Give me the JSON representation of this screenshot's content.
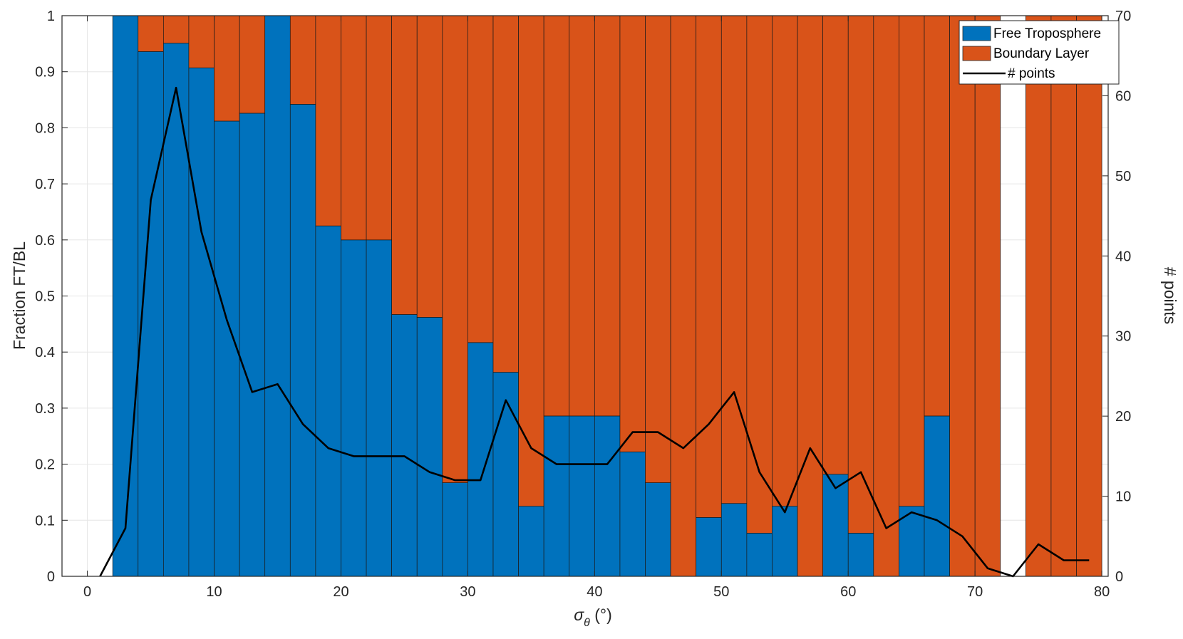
{
  "chart_data": {
    "type": "bar",
    "stacked": true,
    "bin_width": 2,
    "bin_starts": [
      0,
      2,
      4,
      6,
      8,
      10,
      12,
      14,
      16,
      18,
      20,
      22,
      24,
      26,
      28,
      30,
      32,
      34,
      36,
      38,
      40,
      42,
      44,
      46,
      48,
      50,
      52,
      54,
      56,
      58,
      60,
      62,
      64,
      66,
      68,
      70,
      72,
      74,
      76,
      78
    ],
    "series": [
      {
        "name": "Free Troposphere",
        "color": "#0072BD",
        "values": [
          null,
          1.0,
          0.936,
          0.951,
          0.907,
          0.812,
          0.826,
          1.0,
          0.842,
          0.625,
          0.6,
          0.6,
          0.467,
          0.462,
          0.167,
          0.417,
          0.364,
          0.125,
          0.286,
          0.286,
          0.286,
          0.222,
          0.167,
          0.0,
          0.105,
          0.13,
          0.077,
          0.125,
          0.0,
          0.182,
          0.077,
          0.0,
          0.125,
          0.286,
          0.0,
          0.0,
          null,
          0.0,
          0.0,
          0.0
        ]
      },
      {
        "name": "Boundary Layer",
        "color": "#D95319",
        "values": [
          null,
          0.0,
          0.064,
          0.049,
          0.093,
          0.188,
          0.174,
          0.0,
          0.158,
          0.375,
          0.4,
          0.4,
          0.533,
          0.538,
          0.833,
          0.583,
          0.636,
          0.875,
          0.714,
          0.714,
          0.714,
          0.778,
          0.833,
          1.0,
          0.895,
          0.87,
          0.923,
          0.875,
          1.0,
          0.818,
          0.923,
          1.0,
          0.875,
          0.714,
          1.0,
          1.0,
          null,
          1.0,
          1.0,
          1.0
        ]
      },
      {
        "name": "# points",
        "type": "line",
        "axis": "right",
        "color": "#000000",
        "x": [
          1,
          3,
          5,
          7,
          9,
          11,
          13,
          15,
          17,
          19,
          21,
          23,
          25,
          27,
          29,
          31,
          33,
          35,
          37,
          39,
          41,
          43,
          45,
          47,
          49,
          51,
          53,
          55,
          57,
          59,
          61,
          63,
          65,
          67,
          69,
          71,
          73,
          75,
          77,
          79
        ],
        "values": [
          0,
          6,
          47,
          61,
          43,
          32,
          23,
          24,
          19,
          16,
          15,
          15,
          15,
          13,
          12,
          12,
          22,
          16,
          14,
          14,
          14,
          18,
          18,
          16,
          19,
          23,
          13,
          8,
          16,
          11,
          13,
          6,
          8,
          7,
          5,
          1,
          0,
          4,
          2,
          2
        ]
      }
    ],
    "xlabel_symbol": "σ",
    "xlabel_subscript": "θ",
    "xlabel_unit": " (°)",
    "ylabel": "Fraction FT/BL",
    "y2label": "# points",
    "xlim": [
      -2,
      80.5
    ],
    "ylim": [
      0,
      1
    ],
    "y2lim": [
      0,
      70
    ],
    "xticks": [
      0,
      10,
      20,
      30,
      40,
      50,
      60,
      70,
      80
    ],
    "yticks": [
      0,
      0.1,
      0.2,
      0.3,
      0.4,
      0.5,
      0.6,
      0.7,
      0.8,
      0.9,
      1
    ],
    "y2ticks": [
      0,
      10,
      20,
      30,
      40,
      50,
      60,
      70
    ],
    "grid": true,
    "legend_position": "top-right"
  }
}
